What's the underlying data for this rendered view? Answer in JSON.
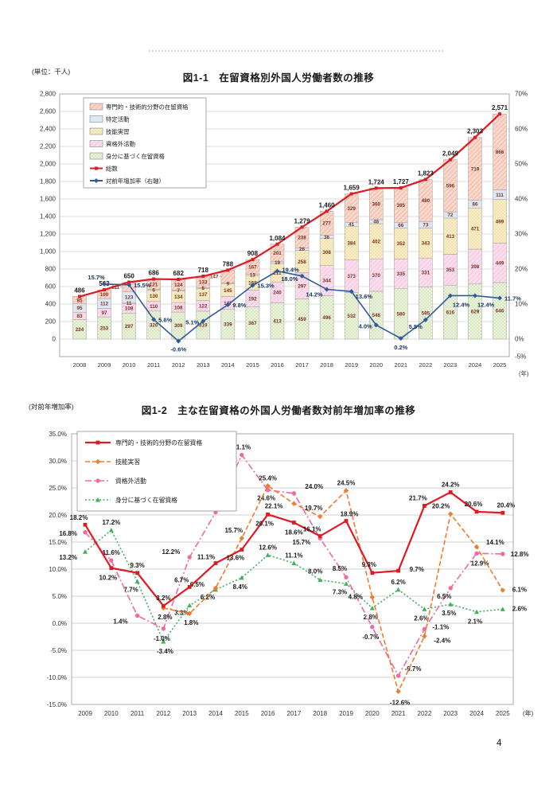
{
  "page": {
    "page_number": "4"
  },
  "chart_data": [
    {
      "type": "bar",
      "subtype": "stacked-bar-with-lines",
      "title": "図1-1　在留資格別外国人労働者数の推移",
      "unit_label": "(単位：千人)",
      "x_axis_suffix": "(年)",
      "years": [
        2008,
        2009,
        2010,
        2011,
        2012,
        2013,
        2014,
        2015,
        2016,
        2017,
        2018,
        2019,
        2020,
        2021,
        2022,
        2023,
        2024,
        2025
      ],
      "left_axis": {
        "min": 0,
        "max": 2800,
        "step": 200,
        "floor": -200
      },
      "right_axis": {
        "labels": [
          "70%",
          "60%",
          "50%",
          "40%",
          "30%",
          "20%",
          "10%",
          "0%"
        ],
        "floor_label": "-5%"
      },
      "bar_series": [
        {
          "name": "専門的・技術的分野の在留資格",
          "fill": "#f9d7cb",
          "hatch": "#e7a18c",
          "values": [
            85,
            100,
            111,
            121,
            124,
            133,
            147,
            167,
            201,
            238,
            277,
            329,
            360,
            395,
            480,
            596,
            719,
            866
          ]
        },
        {
          "name": "特定活動",
          "fill": "#dde8f4",
          "hatch": null,
          "values": [
            95,
            112,
            123,
            6,
            7,
            8,
            9,
            13,
            19,
            26,
            36,
            41,
            46,
            66,
            73,
            72,
            86,
            111
          ]
        },
        {
          "name": "技能実習",
          "fill": "#f8edc4",
          "hatch": "#e0cc8e",
          "values": [
            null,
            null,
            11,
            130,
            134,
            137,
            145,
            168,
            211,
            258,
            308,
            384,
            402,
            352,
            343,
            413,
            471,
            499
          ]
        },
        {
          "name": "資格外活動",
          "fill": "#fadcec",
          "hatch": "#f0b6d5",
          "values": [
            83,
            97,
            108,
            110,
            108,
            122,
            147,
            192,
            240,
            297,
            344,
            373,
            370,
            335,
            331,
            353,
            398,
            449
          ]
        },
        {
          "name": "身分に基づく在留資格",
          "fill": "#eef4e1",
          "hatch": "#d6e6bd",
          "values": [
            224,
            253,
            297,
            320,
            309,
            319,
            339,
            367,
            413,
            459,
            496,
            532,
            546,
            580,
            595,
            616,
            629,
            646
          ]
        }
      ],
      "line_series": [
        {
          "name": "総数",
          "color": "#e01a22",
          "axis": "left",
          "values": [
            486,
            563,
            650,
            686,
            682,
            718,
            788,
            908,
            1084,
            1279,
            1460,
            1659,
            1724,
            1727,
            1823,
            2049,
            2303,
            2571
          ]
        },
        {
          "name": "対前年増加率（右軸）",
          "color": "#2f5b9d",
          "axis": "right",
          "values": [
            null,
            15.7,
            15.5,
            5.6,
            -0.6,
            5.1,
            9.8,
            15.3,
            19.4,
            18.0,
            14.2,
            13.6,
            4.0,
            0.2,
            5.5,
            12.4,
            12.4,
            11.7
          ]
        }
      ]
    },
    {
      "type": "line",
      "title": "図1-2　主な在留資格の外国人労働者数対前年増加率の推移",
      "axis_caption": "(対前年増加率)",
      "x_axis_suffix": "(年)",
      "years": [
        2009,
        2010,
        2011,
        2012,
        2013,
        2014,
        2015,
        2016,
        2017,
        2018,
        2019,
        2020,
        2021,
        2022,
        2023,
        2024,
        2025
      ],
      "y_axis": {
        "min": -15,
        "max": 35,
        "step": 5
      },
      "series": [
        {
          "name": "専門的・技術的分野の在留資格",
          "color": "#e01a22",
          "style": "solid",
          "marker": "square",
          "values": [
            18.2,
            10.2,
            9.3,
            3.2,
            6.7,
            11.1,
            13.6,
            20.1,
            18.6,
            16.1,
            18.9,
            9.3,
            9.7,
            21.7,
            24.2,
            20.6,
            20.4
          ]
        },
        {
          "name": "技能実習",
          "color": "#ed7d31",
          "style": "dashed",
          "marker": "diamond",
          "values": [
            null,
            null,
            null,
            2.8,
            1.8,
            6.5,
            15.7,
            25.4,
            22.1,
            19.7,
            24.5,
            4.8,
            -12.6,
            -2.4,
            20.2,
            14.1,
            6.1
          ]
        },
        {
          "name": "資格外活動",
          "color": "#f0699f",
          "style": "dashdot",
          "marker": "circle",
          "values": [
            16.8,
            11.6,
            1.4,
            -1.0,
            12.2,
            20.5,
            31.1,
            24.6,
            24.0,
            15.7,
            8.5,
            -0.7,
            -9.7,
            -1.1,
            6.5,
            12.9,
            12.8
          ]
        },
        {
          "name": "身分に基づく在留資格",
          "color": "#42b05c",
          "style": "dotted",
          "marker": "triangle",
          "values": [
            13.2,
            17.2,
            7.7,
            -3.4,
            3.3,
            6.2,
            8.4,
            12.6,
            11.1,
            8.0,
            7.3,
            2.8,
            6.2,
            2.6,
            3.5,
            2.1,
            2.6
          ]
        }
      ]
    }
  ]
}
